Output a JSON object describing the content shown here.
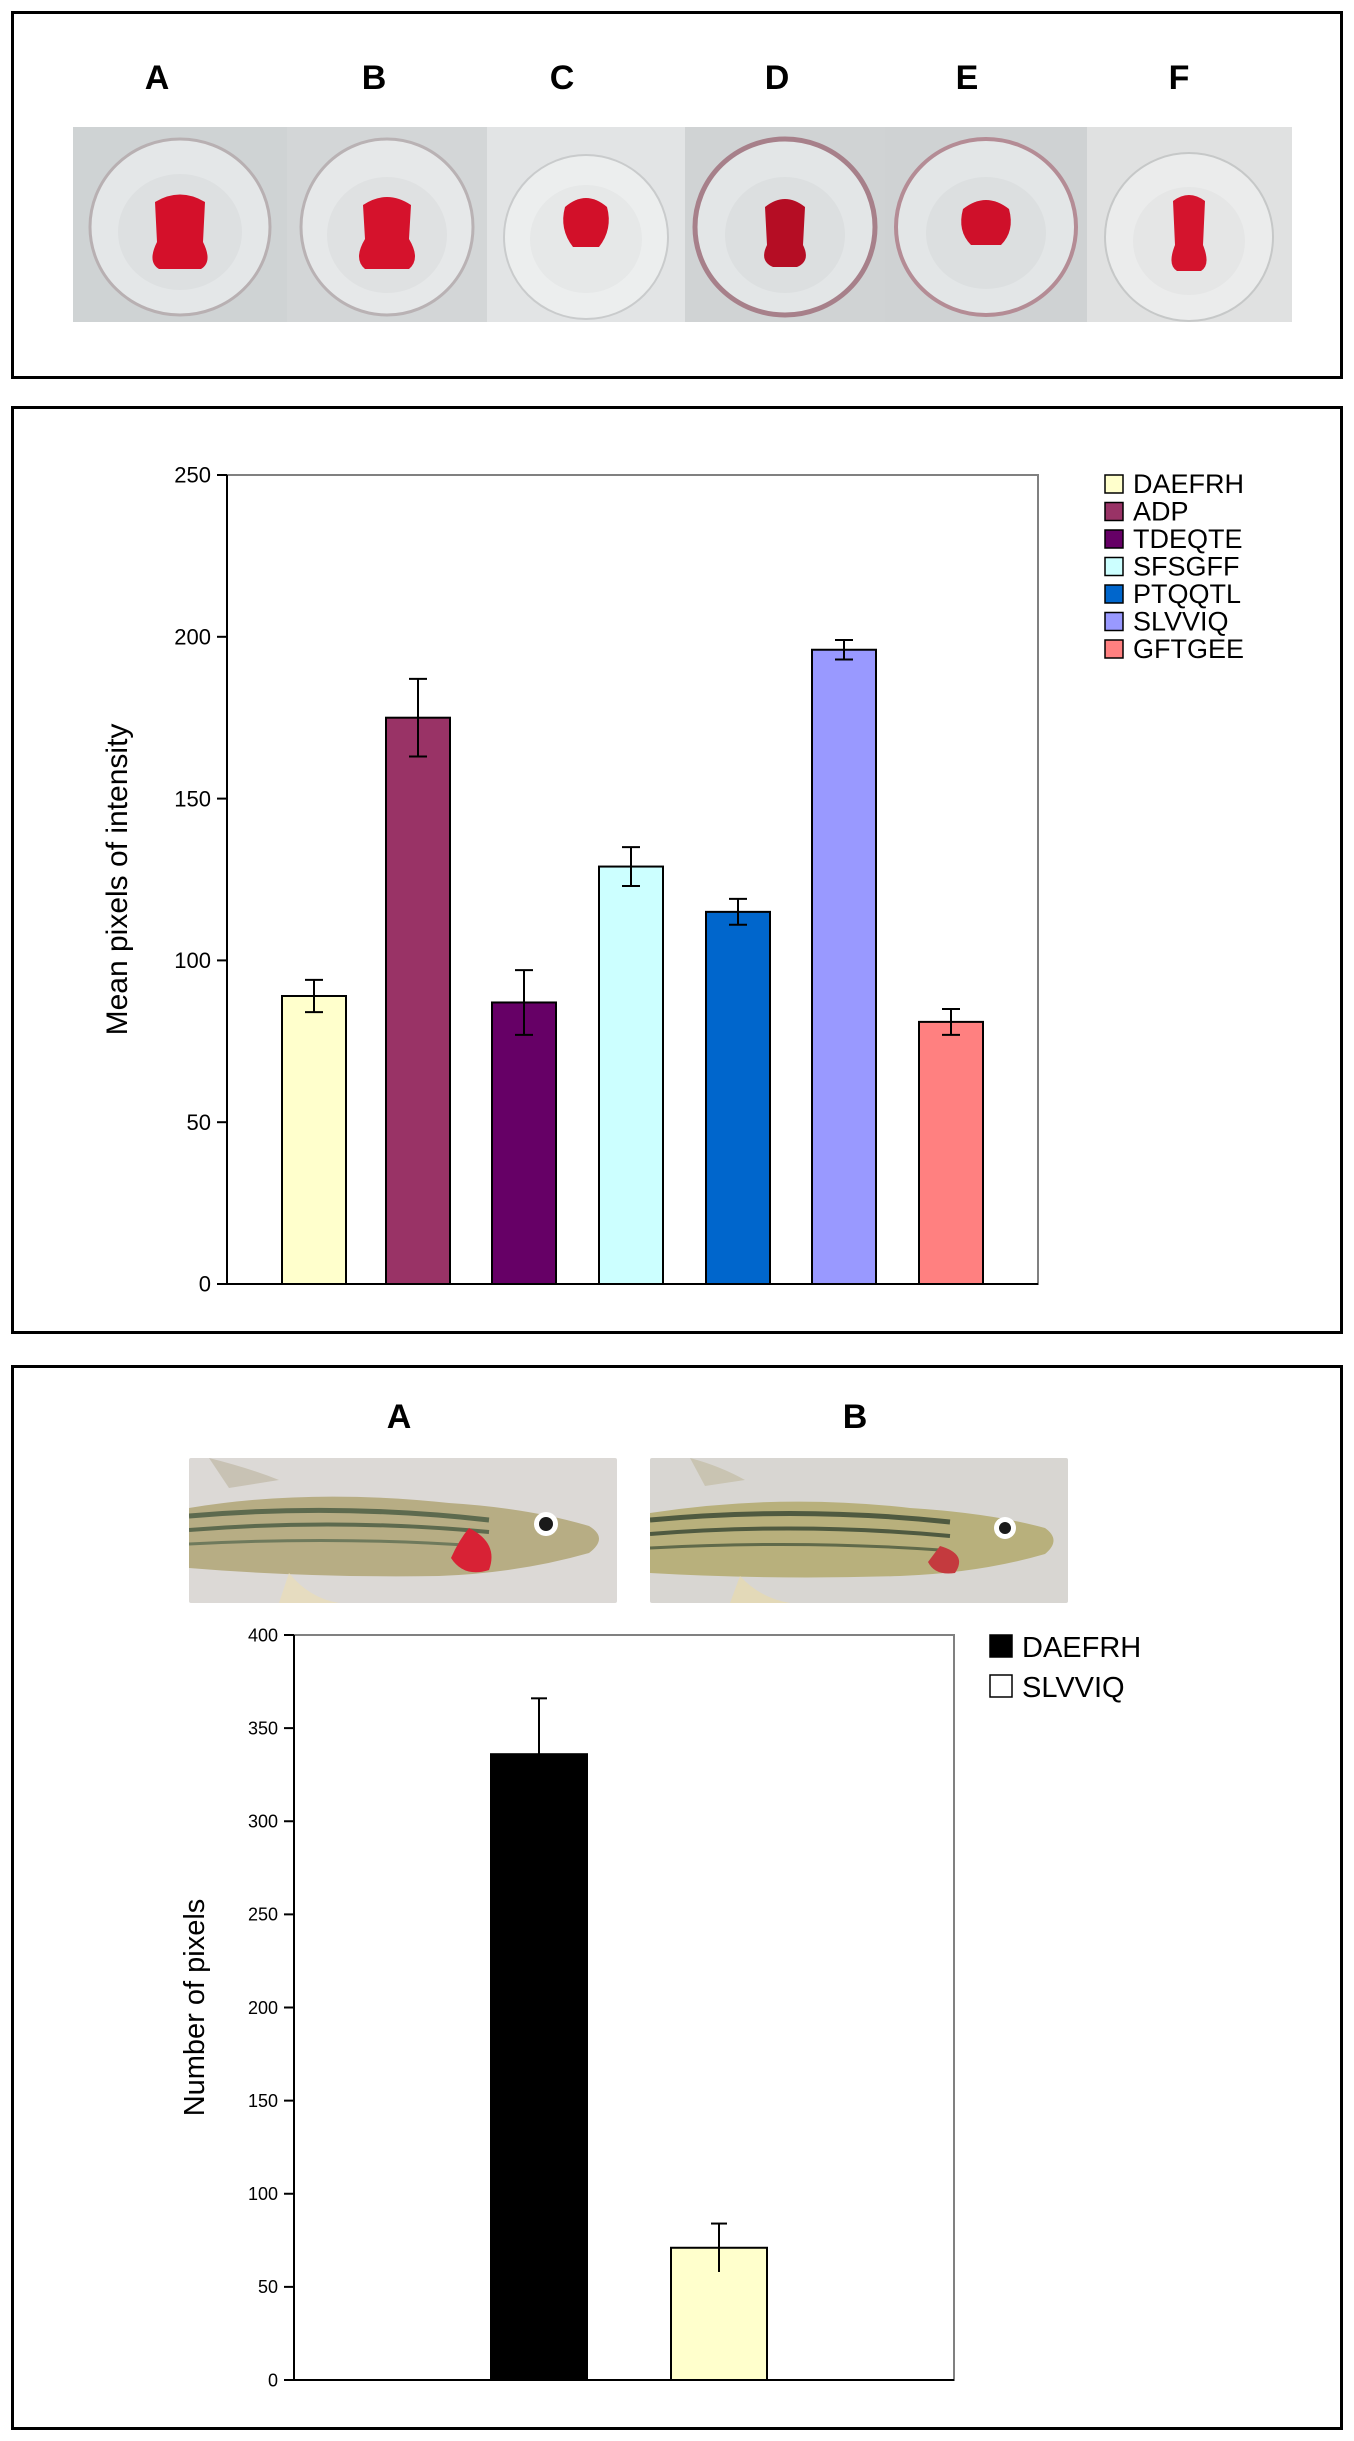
{
  "panel_top": {
    "labels": [
      "A",
      "B",
      "C",
      "D",
      "E",
      "F"
    ]
  },
  "chart_data": [
    {
      "type": "bar",
      "categories": [
        "DAEFRH",
        "ADP",
        "TDEQTE",
        "SFSGFF",
        "PTQQTL",
        "SLVVIQ",
        "GFTGEE"
      ],
      "values": [
        89,
        175,
        87,
        129,
        115,
        196,
        81
      ],
      "errors": [
        5,
        12,
        10,
        6,
        4,
        3,
        4
      ],
      "colors": [
        "#FFFFCC",
        "#993366",
        "#660066",
        "#CCFFFF",
        "#0066CC",
        "#9999FF",
        "#FF8080"
      ],
      "legend": [
        "DAEFRH",
        "ADP",
        "TDEQTE",
        "SFSGFF",
        "PTQQTL",
        "SLVVIQ",
        "GFTGEE"
      ],
      "legend_position": "right",
      "ylabel": "Mean pixels of intensity",
      "xlabel": "",
      "ylim": [
        0,
        250
      ],
      "yticks": [
        0,
        50,
        100,
        150,
        200,
        250
      ],
      "grid": false
    },
    {
      "type": "bar",
      "categories": [
        "DAEFRH",
        "SLVVIQ"
      ],
      "values": [
        336,
        71
      ],
      "errors": [
        30,
        13
      ],
      "colors": [
        "#000000",
        "#FFFFCC"
      ],
      "legend": [
        "DAEFRH",
        "SLVVIQ"
      ],
      "legend_colors": [
        "#000000",
        "#FFFFFF"
      ],
      "legend_position": "right",
      "ylabel": "Number of pixels",
      "xlabel": "",
      "ylim": [
        0,
        400
      ],
      "yticks": [
        0,
        50,
        100,
        150,
        200,
        250,
        300,
        350,
        400
      ],
      "grid": false
    }
  ],
  "panel_bottom": {
    "labels": [
      "A",
      "B"
    ]
  }
}
